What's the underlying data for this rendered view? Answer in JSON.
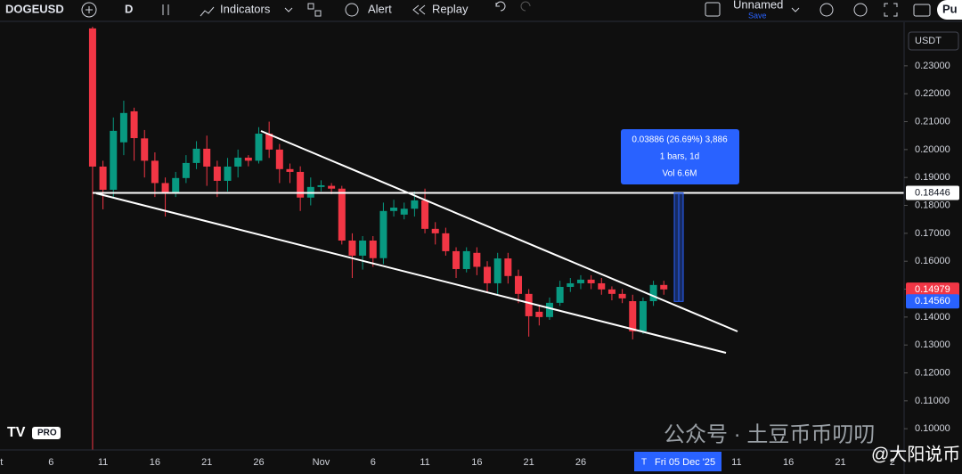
{
  "toolbar": {
    "symbol": "DOGEUSD",
    "interval": "D",
    "indicators": "Indicators",
    "alert": "Alert",
    "replay": "Replay",
    "layout_name": "Unnamed",
    "save": "Save",
    "publish": "Pu"
  },
  "logo": "PRO",
  "watermark": [
    "公众号 · 土豆币币叨叨",
    "@大阳说币"
  ],
  "chart_data": {
    "type": "candlestick",
    "currency": "USDT",
    "categories": [
      "ct",
      null,
      null,
      null,
      null,
      "6",
      null,
      null,
      null,
      null,
      "11",
      null,
      null,
      null,
      null,
      "16",
      null,
      null,
      null,
      null,
      "21",
      null,
      null,
      null,
      null,
      "26",
      null,
      null,
      null,
      null,
      null,
      "Nov",
      null,
      null,
      null,
      null,
      "6",
      null,
      null,
      null,
      null,
      "11",
      null,
      null,
      null,
      null,
      "16",
      null,
      null,
      null,
      null,
      "21",
      null,
      null,
      null,
      null,
      "26",
      null,
      null,
      null,
      null,
      null,
      null,
      null,
      null,
      null,
      null,
      null,
      null,
      null,
      null,
      "11",
      null,
      null,
      null,
      null,
      "16",
      null,
      null,
      null,
      null,
      "21",
      null,
      null,
      null,
      null,
      "2"
    ],
    "open": [
      null,
      null,
      null,
      null,
      null,
      null,
      null,
      null,
      null,
      0.2434,
      0.1939,
      0.1856,
      0.2026,
      0.2137,
      0.204,
      0.196,
      0.188,
      0.1847,
      0.1898,
      0.1952,
      0.2003,
      0.1939,
      0.1888,
      0.1939,
      0.1971,
      0.196,
      0.2057,
      0.2,
      0.193,
      0.192,
      0.1828,
      0.1866,
      0.187,
      0.186,
      0.1674,
      0.162,
      0.1674,
      0.1611,
      0.178,
      0.1767,
      0.1788,
      0.1818,
      0.1716,
      0.17,
      0.1636,
      0.1572,
      0.163,
      0.158,
      0.1521,
      0.161,
      0.1547,
      0.1483,
      0.1419,
      0.14,
      0.1451,
      0.1508,
      0.1521,
      0.1534,
      0.1521,
      0.1499,
      0.1483,
      0.1457,
      0.1349,
      0.1457,
      0.1515,
      null,
      null,
      null,
      null,
      null,
      null,
      null,
      null,
      null,
      null,
      null,
      null,
      null,
      null,
      null,
      null,
      null,
      null,
      null,
      null,
      null,
      null
    ],
    "high": [
      null,
      null,
      null,
      null,
      null,
      null,
      null,
      null,
      null,
      0.244,
      0.196,
      0.2115,
      0.2175,
      0.215,
      0.207,
      0.199,
      0.19,
      0.192,
      0.198,
      0.203,
      0.205,
      0.196,
      0.197,
      0.2,
      0.198,
      0.208,
      0.21,
      0.202,
      0.195,
      0.194,
      0.19,
      0.189,
      0.188,
      0.187,
      0.17,
      0.169,
      0.169,
      0.181,
      0.182,
      0.181,
      0.185,
      0.186,
      0.174,
      0.172,
      0.165,
      0.165,
      0.165,
      0.16,
      0.163,
      0.163,
      0.157,
      0.15,
      0.144,
      0.147,
      0.153,
      0.154,
      0.155,
      0.155,
      0.154,
      0.151,
      0.15,
      0.148,
      0.147,
      0.153,
      0.153,
      null,
      null,
      null,
      null,
      null,
      null,
      null,
      null,
      null,
      null,
      null,
      null,
      null,
      null,
      null,
      null,
      null,
      null,
      null,
      null,
      null,
      null
    ],
    "low": [
      null,
      null,
      null,
      null,
      null,
      null,
      null,
      null,
      null,
      0.0924,
      0.1786,
      0.183,
      0.198,
      0.196,
      0.19,
      0.183,
      0.176,
      0.183,
      0.188,
      0.193,
      0.187,
      0.183,
      0.185,
      0.19,
      0.194,
      0.195,
      0.197,
      0.188,
      0.188,
      0.178,
      0.18,
      0.185,
      0.184,
      0.166,
      0.154,
      0.157,
      0.158,
      0.159,
      0.176,
      0.175,
      0.176,
      0.17,
      0.166,
      0.162,
      0.154,
      0.156,
      0.155,
      0.149,
      0.148,
      0.152,
      0.145,
      0.133,
      0.137,
      0.139,
      0.144,
      0.149,
      0.15,
      0.15,
      0.148,
      0.146,
      0.145,
      0.132,
      0.134,
      0.144,
      0.148,
      null,
      null,
      null,
      null,
      null,
      null,
      null,
      null,
      null,
      null,
      null,
      null,
      null,
      null,
      null,
      null,
      null,
      null,
      null,
      null,
      null,
      null
    ],
    "close": [
      null,
      null,
      null,
      null,
      null,
      null,
      null,
      null,
      null,
      0.1939,
      0.1856,
      0.2067,
      0.2131,
      0.2041,
      0.196,
      0.188,
      0.1847,
      0.1898,
      0.1952,
      0.2003,
      0.1939,
      0.1888,
      0.1939,
      0.1971,
      0.196,
      0.2057,
      0.2,
      0.193,
      0.192,
      0.1828,
      0.1866,
      0.1872,
      0.186,
      0.1674,
      0.162,
      0.1674,
      0.1611,
      0.178,
      0.1792,
      0.1788,
      0.1818,
      0.1716,
      0.17,
      0.1636,
      0.1572,
      0.1636,
      0.158,
      0.1521,
      0.161,
      0.1547,
      0.1483,
      0.1403,
      0.14,
      0.1451,
      0.1508,
      0.1521,
      0.1534,
      0.1521,
      0.1499,
      0.1483,
      0.1467,
      0.1349,
      0.1457,
      0.1515,
      0.1499,
      null,
      null,
      null,
      null,
      null,
      null,
      null,
      null,
      null,
      null,
      null,
      null,
      null,
      null,
      null,
      null,
      null,
      null,
      null,
      null,
      null,
      null
    ],
    "up_color": "#089981",
    "down_color": "#f23645",
    "ylim": [
      0.0924,
      0.244
    ],
    "yticks": [
      {
        "value": 0.23,
        "label": "0.23000"
      },
      {
        "value": 0.22,
        "label": "0.22000"
      },
      {
        "value": 0.21,
        "label": "0.21000"
      },
      {
        "value": 0.2,
        "label": "0.20000"
      },
      {
        "value": 0.19,
        "label": "0.19000"
      },
      {
        "value": 0.18,
        "label": "0.18000"
      },
      {
        "value": 0.17,
        "label": "0.17000"
      },
      {
        "value": 0.16,
        "label": "0.16000"
      },
      {
        "value": 0.15,
        "label": "0.15000"
      },
      {
        "value": 0.14,
        "label": "0.14000"
      },
      {
        "value": 0.13,
        "label": "0.13000"
      },
      {
        "value": 0.12,
        "label": "0.12000"
      },
      {
        "value": 0.11,
        "label": "0.11000"
      },
      {
        "value": 0.1,
        "label": "0.10000"
      }
    ],
    "horizontal_line": {
      "value": 0.18446,
      "label": "0.18446"
    },
    "last_price": {
      "value": 0.14979,
      "label": "0.14979"
    },
    "measure": {
      "start": {
        "value": 0.1456,
        "label": "0.14560"
      },
      "lines": [
        "0.03886 (26.69%) 3,886",
        "1 bars, 1d",
        "Vol 6.6M"
      ]
    },
    "crosshair_marker": "T",
    "crosshair_date": "Fri 05 Dec '25"
  }
}
